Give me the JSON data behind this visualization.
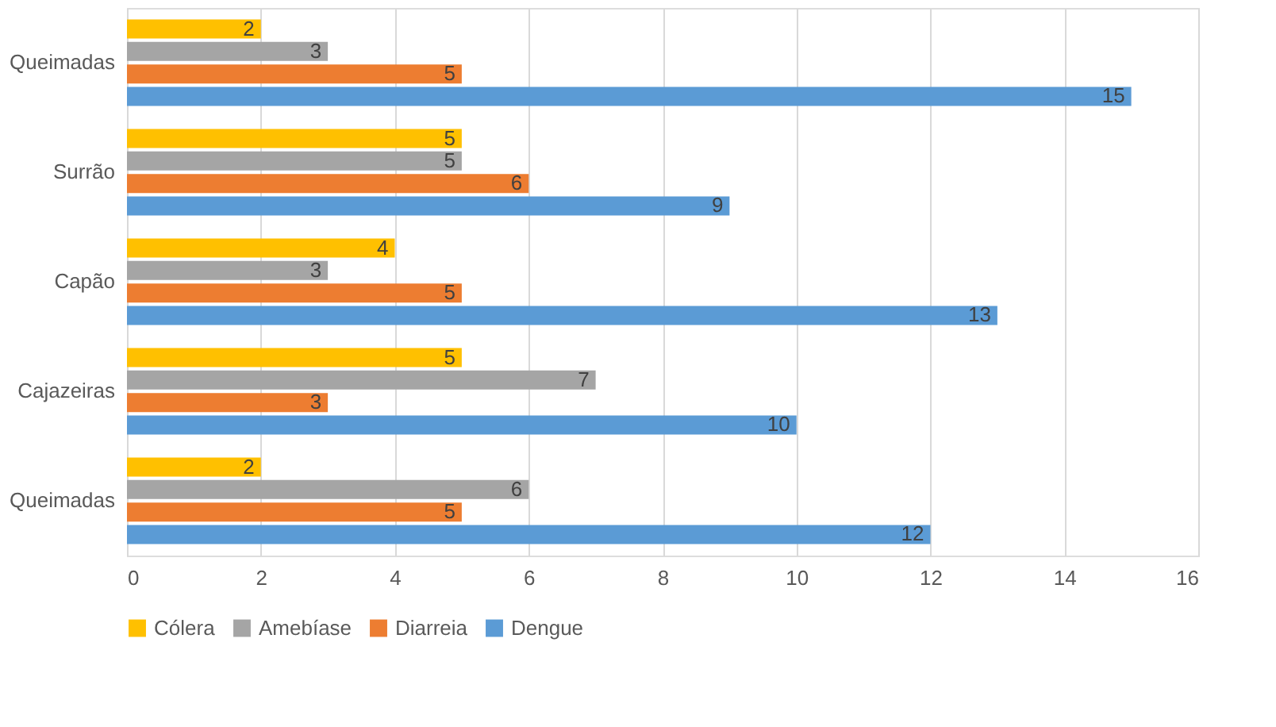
{
  "chart_data": {
    "type": "bar",
    "orientation": "horizontal",
    "categories": [
      "Queimadas",
      "Surrão",
      "Capão",
      "Cajazeiras",
      "Queimadas"
    ],
    "series": [
      {
        "name": "Cólera",
        "color": "#ffc000",
        "values": [
          2,
          5,
          4,
          5,
          2
        ]
      },
      {
        "name": "Amebíase",
        "color": "#a5a5a5",
        "values": [
          3,
          5,
          3,
          7,
          6
        ]
      },
      {
        "name": "Diarreia",
        "color": "#ed7d31",
        "values": [
          5,
          6,
          5,
          3,
          5
        ]
      },
      {
        "name": "Dengue",
        "color": "#5b9bd5",
        "values": [
          15,
          9,
          13,
          10,
          12
        ]
      }
    ],
    "xlim": [
      0,
      16
    ],
    "xticks": [
      0,
      2,
      4,
      6,
      8,
      10,
      12,
      14,
      16
    ],
    "grid": "x",
    "legend": "bottom",
    "data_labels": true
  }
}
